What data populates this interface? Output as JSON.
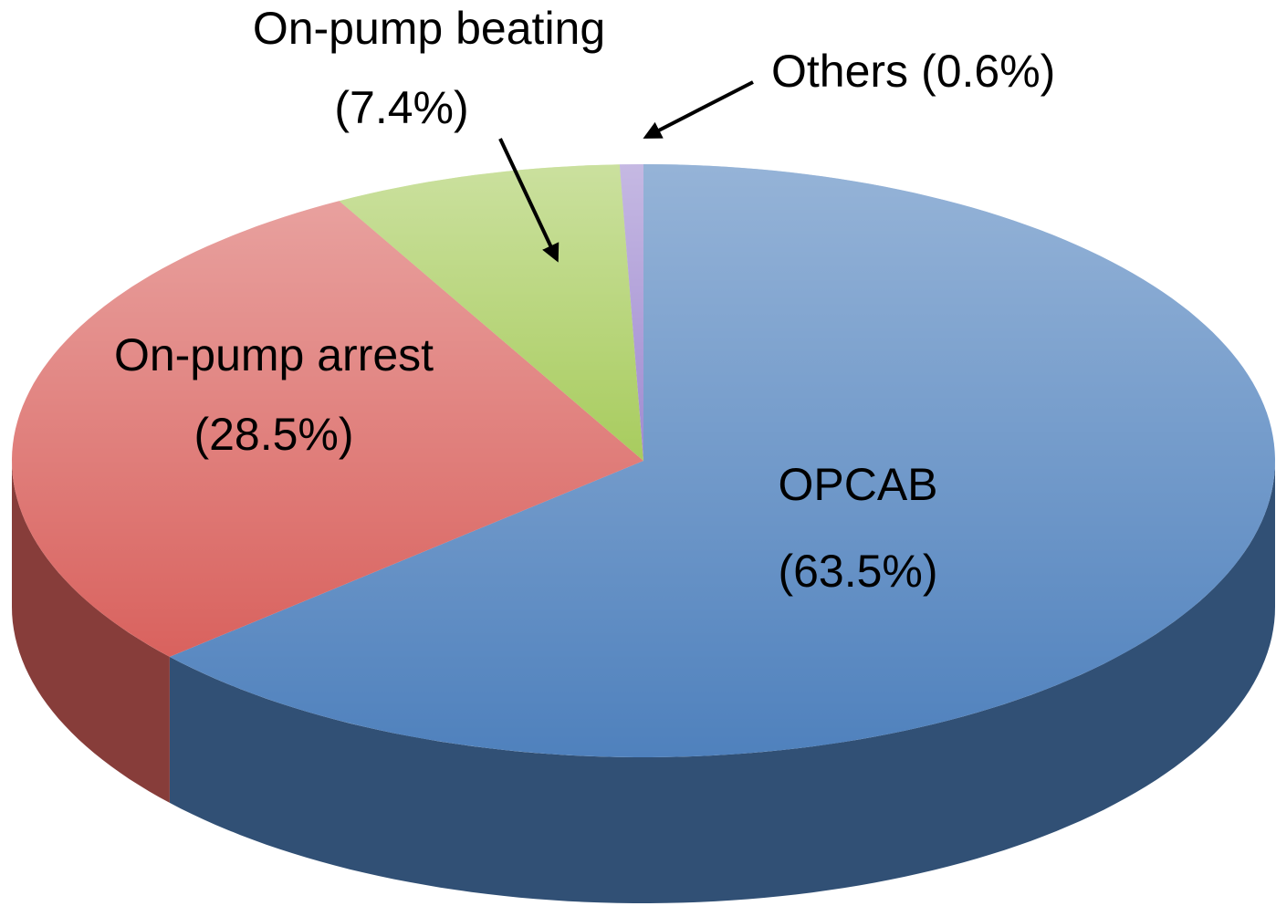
{
  "chart_data": {
    "type": "pie3d",
    "categories": [
      "OPCAB",
      "On-pump arrest",
      "On-pump beating",
      "Others"
    ],
    "values": [
      63.5,
      28.5,
      7.4,
      0.6
    ],
    "value_labels": [
      "(63.5%)",
      "(28.5%)",
      "(7.4%)",
      "(0.6%)"
    ],
    "colors": [
      "#4f81bd",
      "#d9625e",
      "#a8cc5e",
      "#9f8ad0"
    ]
  }
}
